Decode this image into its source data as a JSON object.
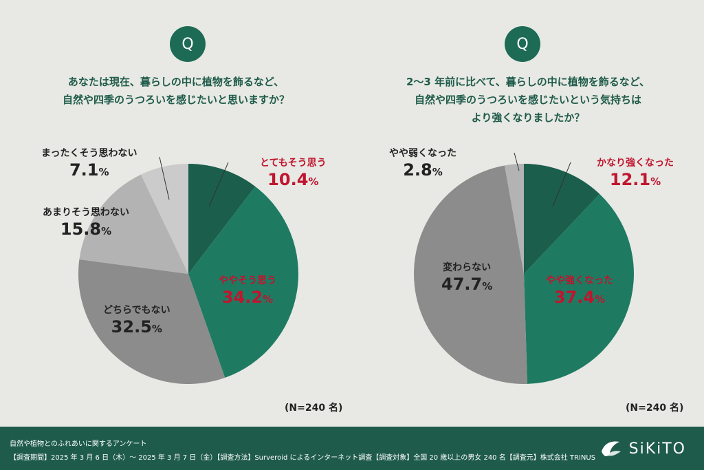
{
  "charts": [
    {
      "badge": "Q",
      "question_lines": [
        "あなたは現在、暮らしの中に植物を飾るなど、",
        "自然や四季のうつろいを感じたいと思いますか？"
      ],
      "note": "(N=240 名)",
      "labels": [
        {
          "name": "とてもそう思う",
          "pct": "10.4"
        },
        {
          "name": "ややそう思う",
          "pct": "34.2"
        },
        {
          "name": "どちらでもない",
          "pct": "32.5"
        },
        {
          "name": "あまりそう思わない",
          "pct": "15.8"
        },
        {
          "name": "まったくそう思わない",
          "pct": "7.1"
        }
      ]
    },
    {
      "badge": "Q",
      "question_lines": [
        "2～3 年前に比べて、暮らしの中に植物を飾るなど、",
        "自然や四季のうつろいを感じたいという気持ちは",
        "より強くなりましたか？"
      ],
      "note": "(N=240 名)",
      "labels": [
        {
          "name": "かなり強くなった",
          "pct": "12.1"
        },
        {
          "name": "やや強くなった",
          "pct": "37.4"
        },
        {
          "name": "変わらない",
          "pct": "47.7"
        },
        {
          "name": "やや弱くなった",
          "pct": "2.8"
        }
      ]
    }
  ],
  "percent_sign": "%",
  "chart_data": [
    {
      "type": "pie",
      "categories": [
        "とてもそう思う",
        "ややそう思う",
        "どちらでもない",
        "あまりそう思わない",
        "まったくそう思わない"
      ],
      "values": [
        10.4,
        34.2,
        32.5,
        15.8,
        7.1
      ],
      "colors": [
        "#1b5e4b",
        "#1e7b62",
        "#8c8c8c",
        "#b3b3b3",
        "#cbcbcb"
      ],
      "label_colors": [
        "#c0152f",
        "#c0152f",
        "#222222",
        "#222222",
        "#222222"
      ]
    },
    {
      "type": "pie",
      "categories": [
        "かなり強くなった",
        "やや強くなった",
        "変わらない",
        "やや弱くなった"
      ],
      "values": [
        12.1,
        37.4,
        47.7,
        2.8
      ],
      "colors": [
        "#1b5e4b",
        "#1e7b62",
        "#8c8c8c",
        "#b3b3b3"
      ],
      "label_colors": [
        "#c0152f",
        "#c0152f",
        "#222222",
        "#222222"
      ]
    }
  ],
  "footer": {
    "line1": "自然や植物とのふれあいに関するアンケート",
    "line2": "【調査期間】2025 年 3 月 6 日（木）～ 2025 年 3 月 7 日（金）【調査方法】Surveroid によるインターネット調査【調査対象】全国 20 歳以上の男女 240 名【調査元】株式会社 TRINUS",
    "logo_text": "SiKiTO"
  }
}
